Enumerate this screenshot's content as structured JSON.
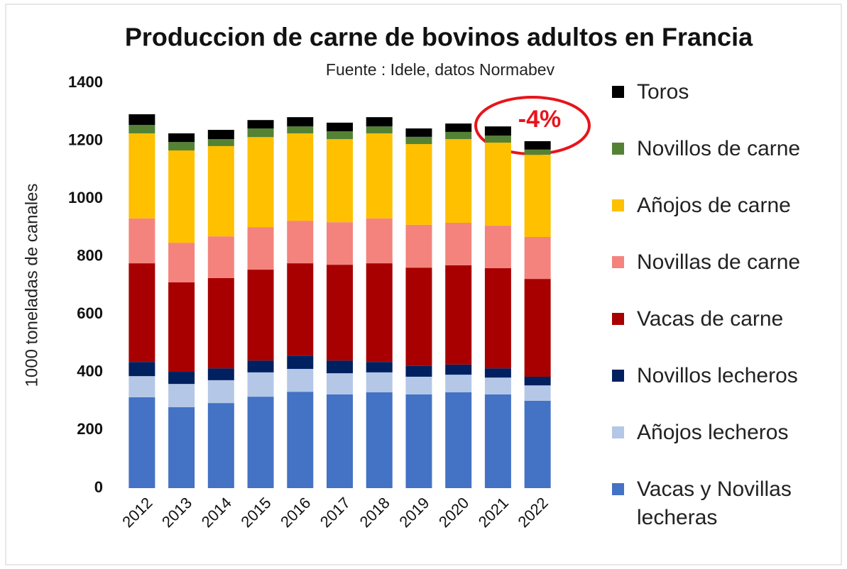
{
  "chart_data": {
    "type": "stacked_bar",
    "title": "Produccion de carne de bovinos adultos en Francia",
    "subtitle": "Fuente : Idele, datos Normabev",
    "y_label": "1000 toneladas de canales",
    "annotation": "-4%",
    "categories": [
      "2012",
      "2013",
      "2014",
      "2015",
      "2016",
      "2017",
      "2018",
      "2019",
      "2020",
      "2021",
      "2022"
    ],
    "series": [
      {
        "name": "Vacas y Novillas lecheras",
        "color": "#4472c4",
        "values": [
          314,
          280,
          294,
          316,
          333,
          324,
          331,
          324,
          331,
          324,
          302
        ]
      },
      {
        "name": "Añojos lecheros",
        "color": "#b4c7e7",
        "values": [
          73,
          80,
          79,
          84,
          79,
          73,
          69,
          61,
          61,
          58,
          53
        ]
      },
      {
        "name": "Novillos lecheros",
        "color": "#002060",
        "values": [
          49,
          42,
          41,
          41,
          46,
          44,
          36,
          37,
          35,
          32,
          30
        ]
      },
      {
        "name": "Vacas de carne",
        "color": "#a80000",
        "values": [
          341,
          309,
          312,
          314,
          319,
          331,
          341,
          340,
          343,
          346,
          338
        ]
      },
      {
        "name": "Novillas de carne",
        "color": "#f4837d",
        "values": [
          155,
          137,
          144,
          147,
          147,
          147,
          155,
          148,
          147,
          147,
          145
        ]
      },
      {
        "name": "Añojos de carne",
        "color": "#ffc000",
        "values": [
          294,
          319,
          312,
          311,
          302,
          287,
          294,
          279,
          289,
          287,
          284
        ]
      },
      {
        "name": "Novillos de carne",
        "color": "#548235",
        "values": [
          29,
          29,
          24,
          30,
          24,
          27,
          24,
          25,
          25,
          24,
          18
        ]
      },
      {
        "name": "Toros",
        "color": "#000000",
        "values": [
          37,
          30,
          32,
          29,
          32,
          30,
          32,
          29,
          29,
          32,
          29
        ]
      }
    ],
    "ylim": [
      0,
      1400
    ],
    "yticks": [
      0,
      200,
      400,
      600,
      800,
      1000,
      1200,
      1400
    ],
    "grid": false,
    "legend": "right"
  }
}
